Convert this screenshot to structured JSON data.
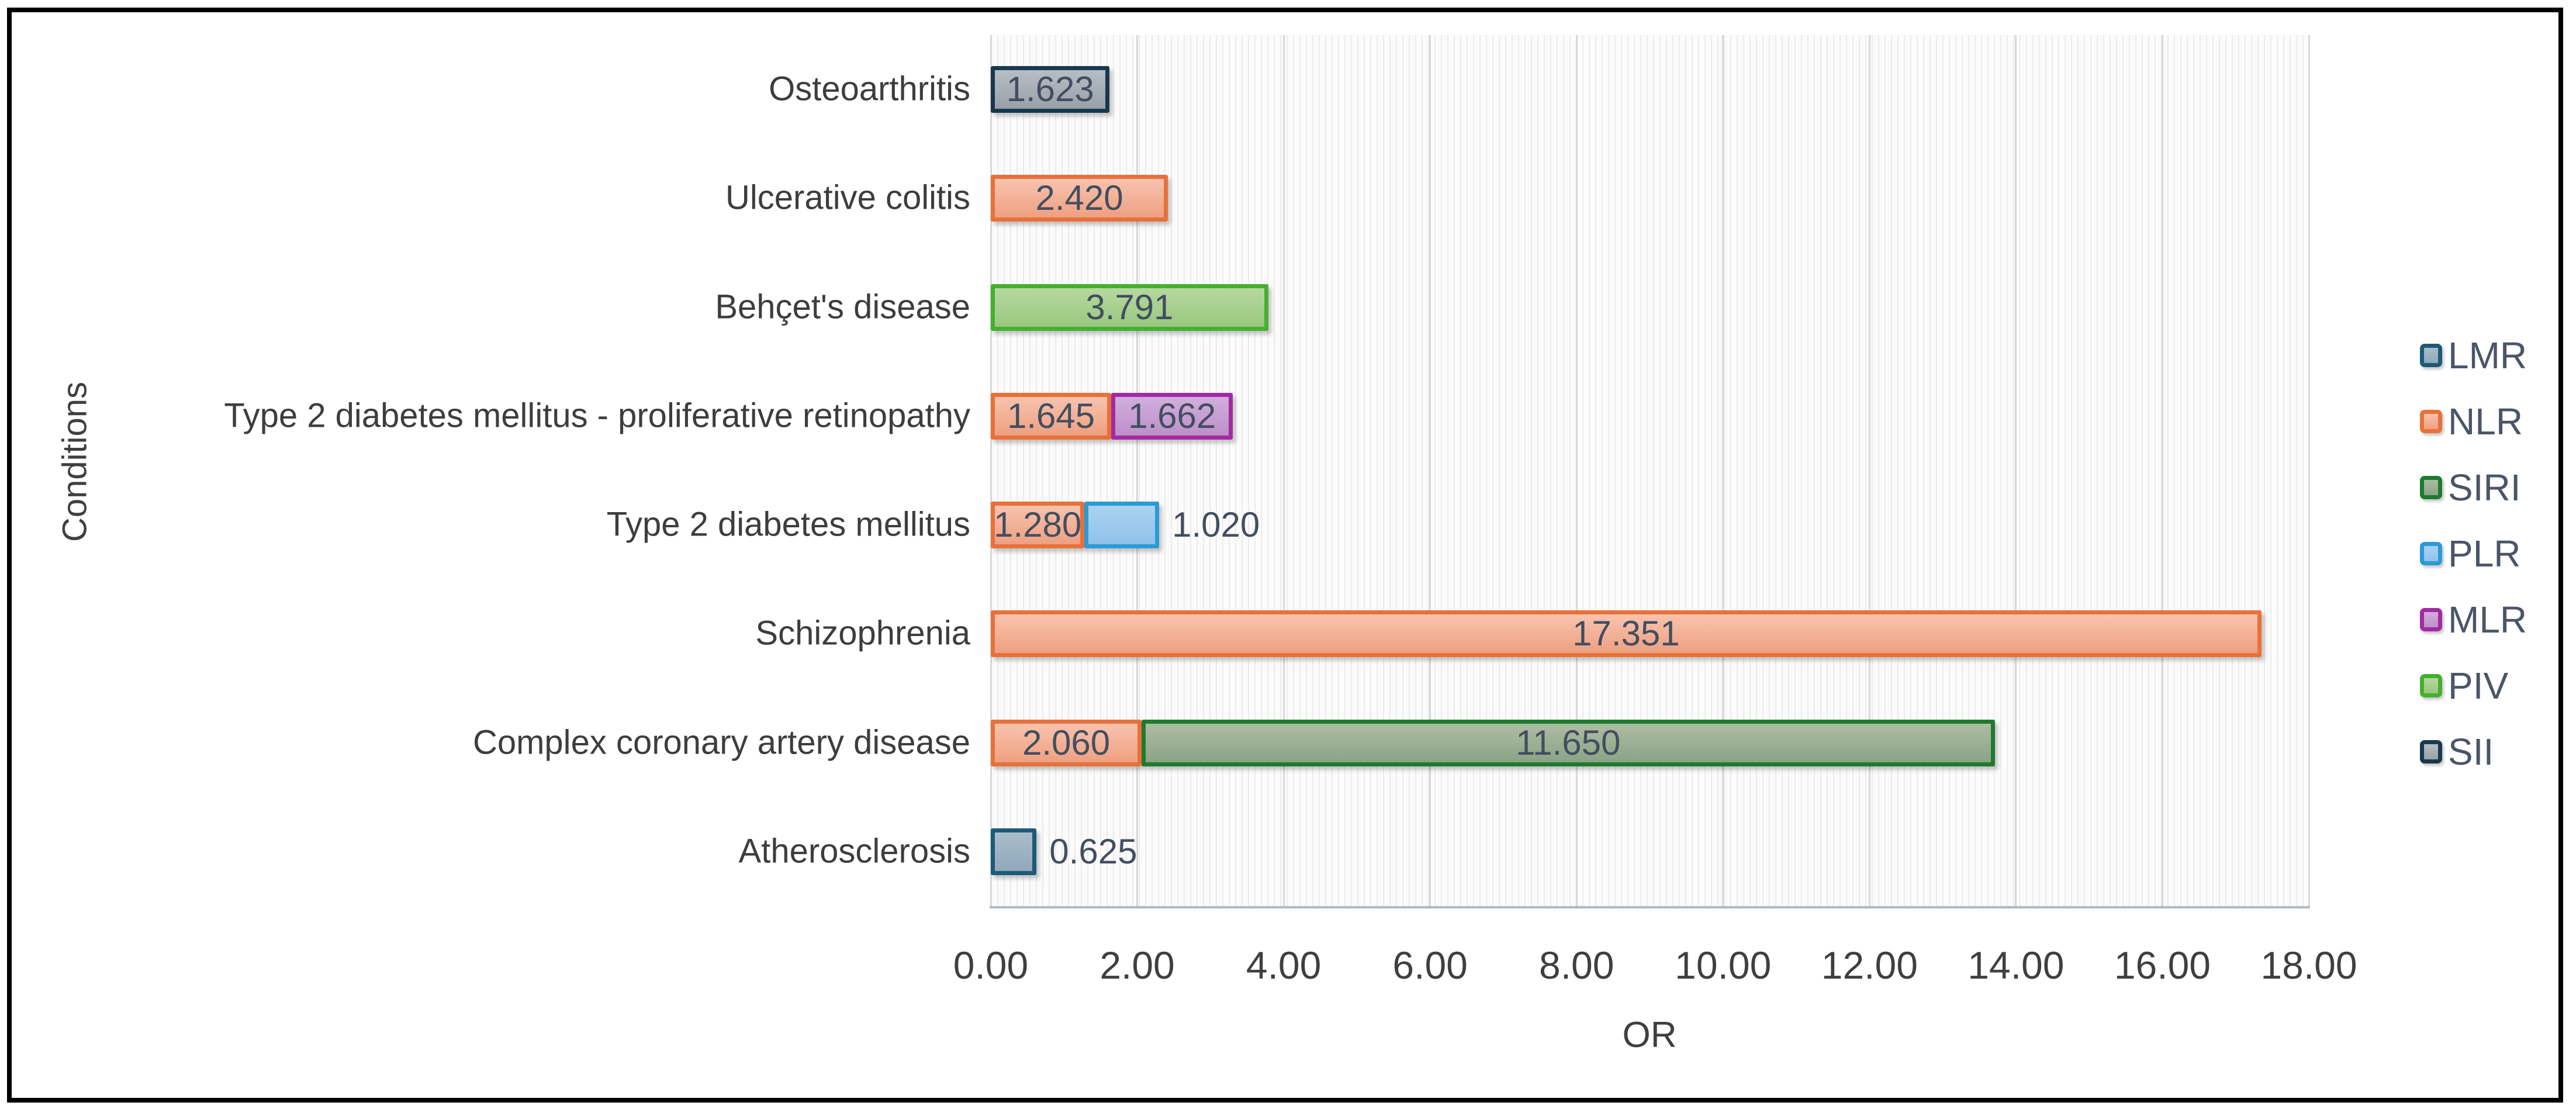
{
  "chart_data": {
    "type": "bar",
    "orientation": "horizontal",
    "stacked": true,
    "title": "",
    "xlabel": "OR",
    "ylabel": "Conditions",
    "xlim": [
      0,
      18
    ],
    "xticks": [
      "0.00",
      "2.00",
      "4.00",
      "6.00",
      "8.00",
      "10.00",
      "12.00",
      "14.00",
      "16.00",
      "18.00"
    ],
    "grid": "vertical-major",
    "legend_position": "right",
    "series_colors": {
      "LMR": {
        "border": "#1d5a78",
        "fill_top": "#aabdcb",
        "fill_bottom": "#8fa8ba"
      },
      "NLR": {
        "border": "#e8713a",
        "fill_top": "#f8c3ae",
        "fill_bottom": "#eea081"
      },
      "SIRI": {
        "border": "#1e7b2e",
        "fill_top": "#acbda3",
        "fill_bottom": "#8ba386"
      },
      "PLR": {
        "border": "#2b9ad7",
        "fill_top": "#abd2f1",
        "fill_bottom": "#90c1ea"
      },
      "MLR": {
        "border": "#a32ba2",
        "fill_top": "#d3aedd",
        "fill_bottom": "#bb90c8"
      },
      "PIV": {
        "border": "#44b02e",
        "fill_top": "#b6d8a0",
        "fill_bottom": "#9ac77e"
      },
      "SII": {
        "border": "#17394e",
        "fill_top": "#b7bdc4",
        "fill_bottom": "#98a0a8"
      }
    },
    "legend_entries": [
      "LMR",
      "NLR",
      "SIRI",
      "PLR",
      "MLR",
      "PIV",
      "SII"
    ],
    "rows": [
      {
        "label": "Osteoarthritis",
        "segments": [
          {
            "series": "SII",
            "value": 1.623,
            "display": "1.623",
            "label_placement": "inside"
          }
        ]
      },
      {
        "label": "Ulcerative colitis",
        "segments": [
          {
            "series": "NLR",
            "value": 2.42,
            "display": "2.420",
            "label_placement": "inside"
          }
        ]
      },
      {
        "label": "Behçet's disease",
        "segments": [
          {
            "series": "PIV",
            "value": 3.791,
            "display": "3.791",
            "label_placement": "inside"
          }
        ]
      },
      {
        "label": "Type 2 diabetes mellitus - proliferative retinopathy",
        "segments": [
          {
            "series": "NLR",
            "value": 1.645,
            "display": "1.645",
            "label_placement": "inside"
          },
          {
            "series": "MLR",
            "value": 1.662,
            "display": "1.662",
            "label_placement": "inside"
          }
        ]
      },
      {
        "label": "Type 2 diabetes mellitus",
        "segments": [
          {
            "series": "NLR",
            "value": 1.28,
            "display": "1.280",
            "label_placement": "inside"
          },
          {
            "series": "PLR",
            "value": 1.02,
            "display": "1.020",
            "label_placement": "outside"
          }
        ]
      },
      {
        "label": "Schizophrenia",
        "segments": [
          {
            "series": "NLR",
            "value": 17.351,
            "display": "17.351",
            "label_placement": "inside"
          }
        ]
      },
      {
        "label": "Complex coronary artery disease",
        "segments": [
          {
            "series": "NLR",
            "value": 2.06,
            "display": "2.060",
            "label_placement": "inside"
          },
          {
            "series": "SIRI",
            "value": 11.65,
            "display": "11.650",
            "label_placement": "inside"
          }
        ]
      },
      {
        "label": "Atherosclerosis",
        "segments": [
          {
            "series": "LMR",
            "value": 0.625,
            "display": "0.625",
            "label_placement": "outside"
          }
        ]
      }
    ]
  }
}
